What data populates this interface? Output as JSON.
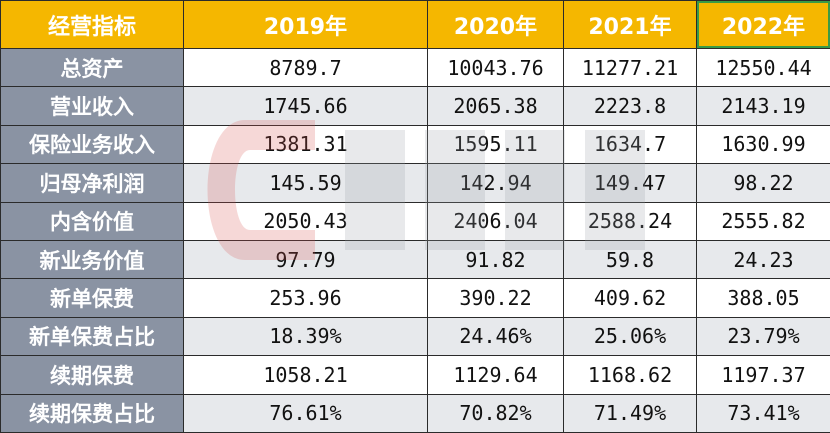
{
  "table": {
    "header": [
      "经营指标",
      "2019年",
      "2020年",
      "2021年",
      "2022年"
    ],
    "rows": [
      {
        "label": "总资产",
        "values": [
          "8789.7",
          "10043.76",
          "11277.21",
          "12550.44"
        ]
      },
      {
        "label": "营业收入",
        "values": [
          "1745.66",
          "2065.38",
          "2223.8",
          "2143.19"
        ]
      },
      {
        "label": "保险业务收入",
        "values": [
          "1381.31",
          "1595.11",
          "1634.7",
          "1630.99"
        ]
      },
      {
        "label": "归母净利润",
        "values": [
          "145.59",
          "142.94",
          "149.47",
          "98.22"
        ]
      },
      {
        "label": "内含价值",
        "values": [
          "2050.43",
          "2406.04",
          "2588.24",
          "2555.82"
        ]
      },
      {
        "label": "新业务价值",
        "values": [
          "97.79",
          "91.82",
          "59.8",
          "24.23"
        ]
      },
      {
        "label": "新单保费",
        "values": [
          "253.96",
          "390.22",
          "409.62",
          "388.05"
        ]
      },
      {
        "label": "新单保费占比",
        "values": [
          "18.39%",
          "24.46%",
          "25.06%",
          "23.79%"
        ]
      },
      {
        "label": "续期保费",
        "values": [
          "1058.21",
          "1129.64",
          "1168.62",
          "1197.37"
        ]
      },
      {
        "label": "续期保费占比",
        "values": [
          "76.61%",
          "70.82%",
          "71.49%",
          "73.41%"
        ]
      }
    ]
  },
  "colors": {
    "header_bg": "#f5b700",
    "row_label_bg": "#8a93a3",
    "alt_row_bg": "#e7e9ec",
    "selected_cell_border": "#3a9b46"
  }
}
